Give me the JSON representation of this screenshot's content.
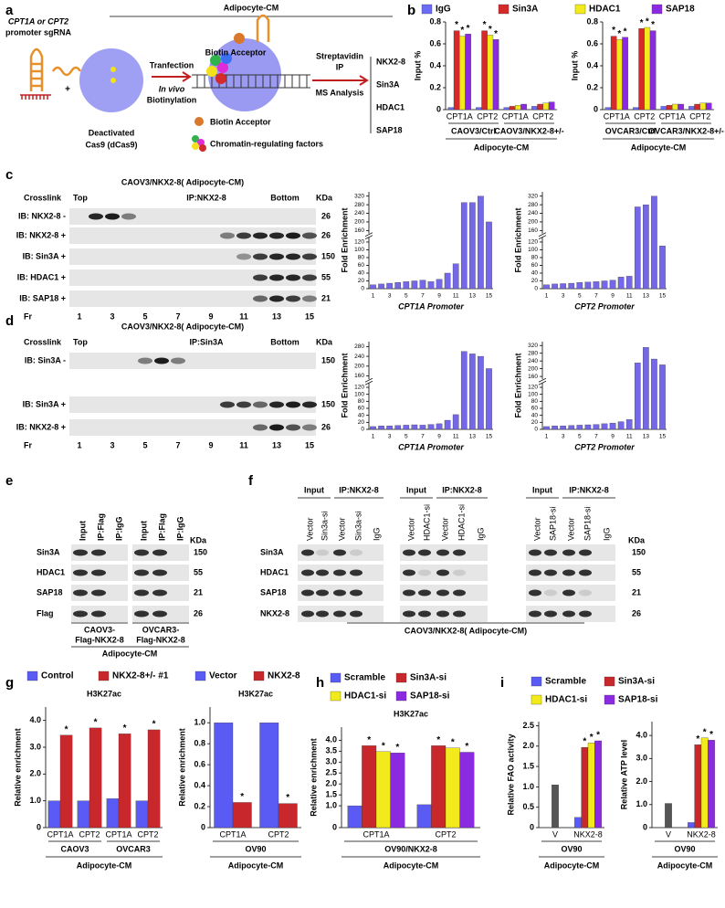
{
  "panels": {
    "a": {
      "letter": "a",
      "header": "Adipocyte-CM",
      "sgrna": [
        "CPT1A or CPT2",
        "promoter sgRNA"
      ],
      "plus": "+",
      "dcas9": [
        "Deactivated",
        "Cas9 (dCas9)"
      ],
      "transfection": "Tranfection",
      "biotinylation": [
        "In vivo",
        "Biotinylation"
      ],
      "acceptor": "Biotin Acceptor",
      "ip": [
        "Streptavidin",
        "IP"
      ],
      "ms": "MS Analysis",
      "results": [
        "NKX2-8",
        "Sin3A",
        "HDAC1",
        "SAP18"
      ],
      "legend": [
        "Biotin Acceptor",
        "Chromatin-regulating factors"
      ]
    },
    "c": {
      "letter": "c",
      "title": "CAOV3/NKX2-8( Adipocyte-CM)",
      "crosslink": "Crosslink",
      "top": "Top",
      "ip": "IP:NKX2-8",
      "bottom": "Bottom",
      "kda": "KDa",
      "rows": [
        [
          "IB: NKX2-8 -",
          "26"
        ],
        [
          "IB: NKX2-8 +",
          "26"
        ],
        [
          "IB: Sin3A +",
          "150"
        ],
        [
          "IB: HDAC1 +",
          "55"
        ],
        [
          "IB: SAP18 +",
          "21"
        ]
      ],
      "fr": "Fr",
      "fractions": [
        "1",
        "3",
        "5",
        "7",
        "9",
        "11",
        "13",
        "15"
      ]
    },
    "d": {
      "letter": "d",
      "title": "CAOV3/NKX2-8( Adipocyte-CM)",
      "crosslink": "Crosslink",
      "top": "Top",
      "ip": "IP:Sin3A",
      "bottom": "Bottom",
      "kda": "KDa",
      "rows": [
        [
          "IB: Sin3A -",
          "150"
        ],
        [
          "IB: Sin3A +",
          "150"
        ],
        [
          "IB: NKX2-8 +",
          "26"
        ]
      ],
      "fr": "Fr",
      "fractions": [
        "1",
        "3",
        "5",
        "7",
        "9",
        "11",
        "13",
        "15"
      ]
    },
    "e": {
      "letter": "e",
      "columns": [
        "Input",
        "IP:Flag",
        "IP:IgG",
        "Input",
        "IP:Flag",
        "IP:IgG"
      ],
      "kda": "KDa",
      "rows": [
        [
          "Sin3A",
          "150"
        ],
        [
          "HDAC1",
          "55"
        ],
        [
          "SAP18",
          "21"
        ],
        [
          "Flag",
          "26"
        ]
      ],
      "cells": [
        [
          "CAOV3-",
          "Flag-NKX2-8"
        ],
        [
          "OVCAR3-",
          "Flag-NKX2-8"
        ]
      ],
      "footer": "Adipocyte-CM"
    },
    "f": {
      "letter": "f",
      "groups": [
        "Input",
        "IP:NKX2-8",
        "Input",
        "IP:NKX2-8",
        "Input",
        "IP:NKX2-8"
      ],
      "columns": [
        "Vector",
        "Sin3a-si",
        "Vector",
        "Sin3a-si",
        "IgG",
        "Vector",
        "HDAC1-si",
        "Vector",
        "HDAC1-si",
        "IgG",
        "Vector",
        "SAP18-si",
        "Vector",
        "SAP18-si",
        "IgG"
      ],
      "kda": "KDa",
      "rows": [
        [
          "Sin3A",
          "150"
        ],
        [
          "HDAC1",
          "55"
        ],
        [
          "SAP18",
          "21"
        ],
        [
          "NKX2-8",
          "26"
        ]
      ],
      "footer": "CAOV3/NKX2-8( Adipocyte-CM)"
    }
  },
  "chart_data": [
    {
      "panel": "b",
      "type": "bar",
      "ylabel": "Input %",
      "categories": [
        "CPT1A",
        "CPT2",
        "CPT1A",
        "CPT2"
      ],
      "group_labels": [
        "CAOV3/Ctrl",
        "CAOV3/NKX2-8+/-"
      ],
      "footer": "Adipocyte-CM",
      "ylim": [
        0,
        0.8
      ],
      "yticks": [
        0,
        0.2,
        0.4,
        0.6,
        0.8
      ],
      "series": [
        {
          "name": "IgG",
          "color": "#6b6bf5",
          "values": [
            0.02,
            0.02,
            0.02,
            0.03
          ]
        },
        {
          "name": "Sin3A",
          "color": "#d42a2a",
          "values": [
            0.72,
            0.72,
            0.03,
            0.05
          ],
          "marks": [
            "*",
            "*",
            null,
            null
          ]
        },
        {
          "name": "HDAC1",
          "color": "#f2ea1c",
          "values": [
            0.67,
            0.68,
            0.04,
            0.06
          ],
          "marks": [
            "*",
            "*",
            null,
            null
          ]
        },
        {
          "name": "SAP18",
          "color": "#8a2be2",
          "values": [
            0.69,
            0.64,
            0.05,
            0.07
          ],
          "marks": [
            "*",
            "*",
            null,
            null
          ]
        }
      ]
    },
    {
      "type": "bar",
      "ylabel": "Input %",
      "categories": [
        "CPT1A",
        "CPT2",
        "CPT1A",
        "CPT2"
      ],
      "group_labels": [
        "OVCAR3/Ctrl",
        "OVCAR3/NKX2-8+/-"
      ],
      "footer": "Adipocyte-CM",
      "ylim": [
        0,
        0.8
      ],
      "yticks": [
        0,
        0.2,
        0.4,
        0.6,
        0.8
      ],
      "series": [
        {
          "color": "#6b6bf5",
          "values": [
            0.02,
            0.02,
            0.03,
            0.03
          ]
        },
        {
          "color": "#d42a2a",
          "values": [
            0.67,
            0.74,
            0.04,
            0.05
          ],
          "marks": [
            "*",
            "*",
            null,
            null
          ]
        },
        {
          "color": "#f2ea1c",
          "values": [
            0.64,
            0.75,
            0.05,
            0.06
          ],
          "marks": [
            "*",
            "*",
            null,
            null
          ]
        },
        {
          "color": "#8a2be2",
          "values": [
            0.66,
            0.72,
            0.05,
            0.06
          ],
          "marks": [
            "*",
            "*",
            null,
            null
          ]
        }
      ]
    },
    {
      "type": "bar",
      "ylabel": "Fold Enrichment",
      "xlabel": "CPT1A Promoter",
      "categories": [
        1,
        null,
        3,
        null,
        5,
        null,
        7,
        null,
        9,
        null,
        11,
        null,
        13,
        null,
        15
      ],
      "ylim": [
        0,
        340
      ],
      "axis_break": [
        130,
        150
      ],
      "yticks": [
        0,
        20,
        40,
        60,
        80,
        100,
        120,
        160,
        200,
        240,
        280,
        320
      ],
      "series": [
        {
          "color": "#7467e8",
          "values": [
            10,
            12,
            14,
            16,
            18,
            20,
            22,
            18,
            24,
            40,
            64,
            290,
            290,
            320,
            200
          ]
        }
      ]
    },
    {
      "type": "bar",
      "ylabel": "Fold Enrichment",
      "xlabel": "CPT2 Promoter",
      "categories": [
        1,
        null,
        3,
        null,
        5,
        null,
        7,
        null,
        9,
        null,
        11,
        null,
        13,
        null,
        15
      ],
      "ylim": [
        0,
        340
      ],
      "axis_break": [
        130,
        150
      ],
      "yticks": [
        0,
        20,
        40,
        60,
        80,
        100,
        120,
        160,
        200,
        240,
        280,
        320
      ],
      "series": [
        {
          "color": "#7467e8",
          "values": [
            10,
            12,
            13,
            14,
            16,
            17,
            18,
            20,
            22,
            30,
            32,
            270,
            280,
            320,
            110
          ]
        }
      ]
    },
    {
      "type": "bar",
      "ylabel": "Fold Enrichment",
      "xlabel": "CPT1A Promoter",
      "categories": [
        1,
        null,
        3,
        null,
        5,
        null,
        7,
        null,
        9,
        null,
        11,
        null,
        13,
        null,
        15
      ],
      "ylim": [
        0,
        300
      ],
      "axis_break": [
        130,
        150
      ],
      "yticks": [
        0,
        20,
        40,
        60,
        80,
        100,
        120,
        160,
        200,
        240,
        280
      ],
      "series": [
        {
          "color": "#7467e8",
          "values": [
            8,
            10,
            10,
            11,
            12,
            13,
            12,
            14,
            16,
            26,
            42,
            260,
            250,
            240,
            190
          ]
        }
      ]
    },
    {
      "type": "bar",
      "ylabel": "Fold Enrichment",
      "xlabel": "CPT2 Promoter",
      "categories": [
        1,
        null,
        3,
        null,
        5,
        null,
        7,
        null,
        9,
        null,
        11,
        null,
        13,
        null,
        15
      ],
      "ylim": [
        0,
        340
      ],
      "axis_break": [
        130,
        150
      ],
      "yticks": [
        0,
        20,
        40,
        60,
        80,
        100,
        120,
        160,
        200,
        240,
        280,
        320
      ],
      "series": [
        {
          "color": "#7467e8",
          "values": [
            8,
            10,
            10,
            11,
            12,
            13,
            14,
            16,
            18,
            22,
            28,
            230,
            310,
            250,
            220
          ]
        }
      ]
    },
    {
      "panel": "g",
      "type": "bar",
      "title": "H3K27ac",
      "ylabel": "Relative enrichment",
      "categories": [
        "CPT1A",
        "CPT2",
        "CPT1A",
        "CPT2"
      ],
      "group_labels": [
        "CAOV3",
        "OVCAR3"
      ],
      "footer": "Adipocyte-CM",
      "ylim": [
        0,
        4.5
      ],
      "yticks": [
        0,
        {
          "value": 1,
          "label": "1.0"
        },
        {
          "value": 2,
          "label": "2.0"
        },
        {
          "value": 3,
          "label": "3.0"
        },
        {
          "value": 4,
          "label": "4.0"
        }
      ],
      "series": [
        {
          "name": "Control",
          "color": "#5a5af5",
          "values": [
            1,
            1,
            1.08,
            1
          ]
        },
        {
          "name": "NKX2-8+/- #1",
          "color": "#c8282c",
          "values": [
            3.45,
            3.72,
            3.5,
            3.65
          ],
          "marks": [
            "*",
            "*",
            "*",
            "*"
          ]
        }
      ]
    },
    {
      "type": "bar",
      "title": "H3K27ac",
      "ylabel": "Relative enrichment",
      "categories": [
        "CPT1A",
        "CPT2"
      ],
      "group_labels": [
        "OV90"
      ],
      "footer": "Adipocyte-CM",
      "ylim": [
        0,
        1.15
      ],
      "yticks": [
        0,
        0.2,
        0.4,
        0.6,
        0.8,
        {
          "value": 1,
          "label": "1.0"
        }
      ],
      "series": [
        {
          "name": "Vector",
          "color": "#5a5af5",
          "values": [
            1,
            1
          ]
        },
        {
          "name": "NKX2-8",
          "color": "#c8282c",
          "values": [
            0.24,
            0.23
          ],
          "marks": [
            "*",
            "*"
          ]
        }
      ]
    },
    {
      "panel": "h",
      "type": "bar",
      "title": "H3K27ac",
      "ylabel": "Relative enrichment",
      "categories": [
        "CPT1A",
        "CPT2"
      ],
      "group_labels": [
        "OV90/NKX2-8"
      ],
      "footer": "Adipocyte-CM",
      "ylim": [
        0,
        4.6
      ],
      "yticks": [
        0,
        {
          "value": 1,
          "label": "1.0"
        },
        {
          "value": 1.5,
          "label": "1.5"
        },
        {
          "value": 2,
          "label": "2.0"
        },
        {
          "value": 2.5,
          "label": "2.5"
        },
        {
          "value": 3,
          "label": "3.0"
        },
        {
          "value": 3.5,
          "label": "3.5"
        },
        {
          "value": 4,
          "label": "4.0"
        }
      ],
      "series": [
        {
          "name": "Scramble",
          "color": "#5a5af5",
          "values": [
            1,
            1.05
          ]
        },
        {
          "name": "Sin3A-si",
          "color": "#c8282c",
          "values": [
            3.75,
            3.75
          ],
          "marks": [
            "*",
            "*"
          ]
        },
        {
          "name": "HDAC1-si",
          "color": "#f2ea1c",
          "values": [
            3.48,
            3.65
          ],
          "marks": [
            "*",
            "*"
          ]
        },
        {
          "name": "SAP18-si",
          "color": "#8a2be2",
          "values": [
            3.42,
            3.45
          ],
          "marks": [
            "*",
            "*"
          ]
        }
      ]
    },
    {
      "panel": "i",
      "type": "bar",
      "ylabel": "Relative FAO activity",
      "categories": [
        "V",
        "NKX2-8"
      ],
      "group_labels": [
        "OV90"
      ],
      "footer": "Adipocyte-CM",
      "ylim": [
        0,
        2.6
      ],
      "yticks": [
        0,
        0.5,
        {
          "value": 1,
          "label": "1.0"
        },
        1.5,
        {
          "value": 2,
          "label": "2.0"
        },
        2.5
      ],
      "series": [
        {
          "color": "#555555",
          "values": [
            1.05,
            null
          ]
        },
        {
          "name": "Scramble",
          "color": "#5a5af5",
          "values": [
            null,
            0.25
          ]
        },
        {
          "name": "Sin3A-si",
          "color": "#c8282c",
          "values": [
            null,
            1.97
          ],
          "marks": [
            null,
            "*"
          ]
        },
        {
          "name": "HDAC1-si",
          "color": "#f2ea1c",
          "values": [
            null,
            2.08
          ],
          "marks": [
            null,
            "*"
          ]
        },
        {
          "name": "SAP18-si",
          "color": "#8a2be2",
          "values": [
            null,
            2.13
          ],
          "marks": [
            null,
            "*"
          ]
        }
      ]
    },
    {
      "type": "bar",
      "ylabel": "Relative ATP level",
      "categories": [
        "V",
        "NKX2-8"
      ],
      "group_labels": [
        "OV90"
      ],
      "footer": "Adipocyte-CM",
      "ylim": [
        0,
        4.6
      ],
      "yticks": [
        0,
        {
          "value": 1,
          "label": "1.0"
        },
        {
          "value": 2,
          "label": "2.0"
        },
        {
          "value": 3,
          "label": "3.0"
        },
        {
          "value": 4,
          "label": "4.0"
        }
      ],
      "series": [
        {
          "color": "#555555",
          "values": [
            1.05,
            null
          ]
        },
        {
          "color": "#5a5af5",
          "values": [
            null,
            0.22
          ]
        },
        {
          "color": "#c8282c",
          "values": [
            null,
            3.6
          ],
          "marks": [
            null,
            "*"
          ]
        },
        {
          "color": "#f2ea1c",
          "values": [
            null,
            3.9
          ],
          "marks": [
            null,
            "*"
          ]
        },
        {
          "color": "#8a2be2",
          "values": [
            null,
            3.8
          ],
          "marks": [
            null,
            "*"
          ]
        }
      ]
    }
  ]
}
